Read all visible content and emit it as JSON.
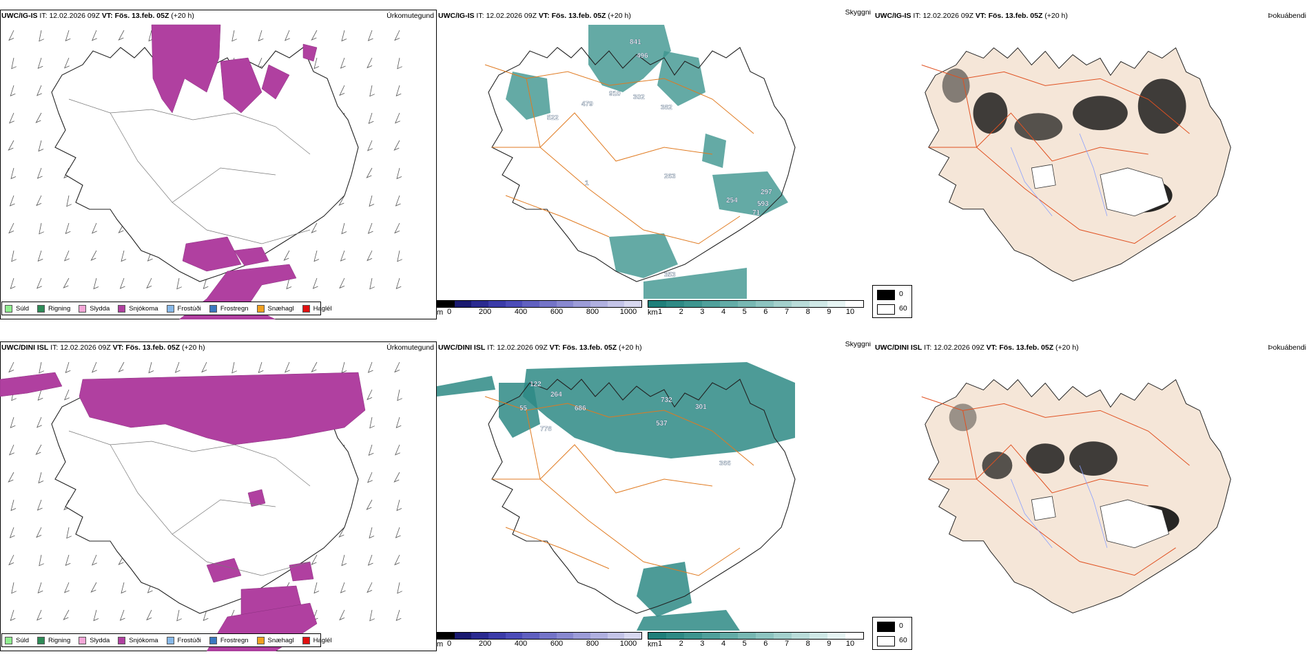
{
  "rows": [
    {
      "model": "UWC/IG-IS",
      "it_label": "IT:",
      "it_value": "12.02.2026 09Z",
      "vt_label": "VT:",
      "vt_value": "Fös. 13.feb. 05Z",
      "lead": "(+20 h)",
      "panel_titles": {
        "precip_type": "Úrkomutegund",
        "visibility": "Skyggni",
        "fog": "Þokuábendi"
      },
      "vis_labels": [
        "841",
        "496",
        "910",
        "302",
        "382",
        "479",
        "522",
        "263",
        "1",
        "254",
        "297",
        "593",
        "71",
        "353"
      ]
    },
    {
      "model": "UWC/DINI ISL",
      "it_label": "IT:",
      "it_value": "12.02.2026 09Z",
      "vt_label": "VT:",
      "vt_value": "Fös. 13.feb. 05Z",
      "lead": "(+20 h)",
      "panel_titles": {
        "precip_type": "Úrkomutegund",
        "visibility": "Skyggni",
        "fog": "Þokuábendi"
      },
      "vis_labels": [
        "122",
        "264",
        "686",
        "55",
        "778",
        "732",
        "301",
        "537",
        "366"
      ]
    }
  ],
  "precip_legend": [
    {
      "label": "Súld",
      "color": "#90ee90"
    },
    {
      "label": "Rigning",
      "color": "#2e8b57"
    },
    {
      "label": "Slydda",
      "color": "#f4a6d7"
    },
    {
      "label": "Snjókoma",
      "color": "#b040a0"
    },
    {
      "label": "Frostúði",
      "color": "#87b8e8"
    },
    {
      "label": "Frostregn",
      "color": "#3a78c0"
    },
    {
      "label": "Snæhagl",
      "color": "#f0a020"
    },
    {
      "label": "Haglél",
      "color": "#e01010"
    }
  ],
  "height_bar": {
    "unit": "m",
    "ticks": [
      "0",
      "200",
      "400",
      "600",
      "800",
      "1000"
    ],
    "colors": [
      "#000000",
      "#1a1a70",
      "#2a2a90",
      "#3b3ba8",
      "#4c4cb8",
      "#6060c0",
      "#7474c8",
      "#8888d0",
      "#9c9cd8",
      "#b0b0e0",
      "#c4c4e8",
      "#d8d8f0"
    ]
  },
  "km_bar": {
    "unit": "km",
    "ticks": [
      "1",
      "2",
      "3",
      "4",
      "5",
      "6",
      "7",
      "8",
      "9",
      "10"
    ],
    "colors": [
      "#1f7f7a",
      "#2e8a85",
      "#3d958f",
      "#4fa09b",
      "#63aca7",
      "#78b8b3",
      "#8dc4c0",
      "#a3d0cc",
      "#b9dcd9",
      "#cfe8e6",
      "#e6f4f3",
      "#ffffff"
    ]
  },
  "fog_legend": {
    "values": [
      "0",
      "60"
    ],
    "colors": [
      "#000000",
      "#ffffff"
    ]
  }
}
